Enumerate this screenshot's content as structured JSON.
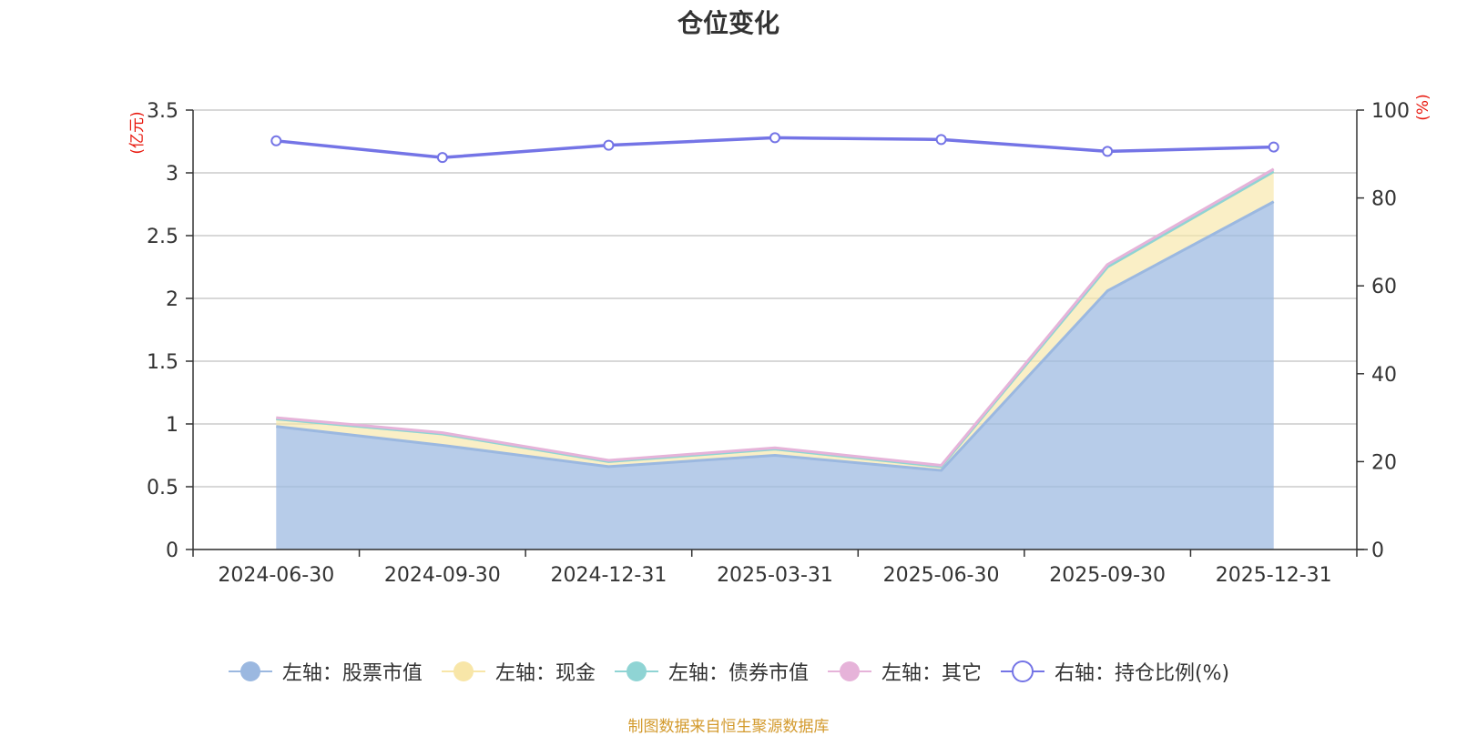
{
  "chart_data": {
    "type": "area",
    "title": "仓位变化",
    "categories": [
      "2024-06-30",
      "2024-09-30",
      "2024-12-31",
      "2025-03-31",
      "2025-06-30",
      "2025-09-30",
      "2025-12-31"
    ],
    "left_axis": {
      "unit": "(亿元)",
      "ylim": [
        0,
        3.5
      ],
      "ticks": [
        "0",
        "0.5",
        "1",
        "1.5",
        "2",
        "2.5",
        "3",
        "3.5"
      ]
    },
    "right_axis": {
      "unit": "(%)",
      "ylim": [
        0,
        100
      ],
      "ticks": [
        "0",
        "20",
        "40",
        "60",
        "80",
        "100"
      ]
    },
    "series": [
      {
        "name": "左轴：股票市值",
        "axis": "left",
        "color": "#9bb8e0",
        "values": [
          0.98,
          0.83,
          0.66,
          0.75,
          0.63,
          2.06,
          2.77
        ]
      },
      {
        "name": "左轴：现金",
        "axis": "left",
        "color": "#f8e6a8",
        "values": [
          0.06,
          0.09,
          0.04,
          0.05,
          0.03,
          0.19,
          0.24
        ]
      },
      {
        "name": "左轴：债券市值",
        "axis": "left",
        "color": "#8fd4d4",
        "values": [
          0,
          0,
          0,
          0,
          0,
          0,
          0
        ]
      },
      {
        "name": "左轴：其它",
        "axis": "left",
        "color": "#e6b3d9",
        "values": [
          0.01,
          0.01,
          0.01,
          0.01,
          0.01,
          0.02,
          0.02
        ]
      },
      {
        "name": "右轴：持仓比例(%)",
        "axis": "right",
        "color": "#7474e6",
        "values": [
          93.0,
          89.2,
          92.0,
          93.7,
          93.3,
          90.6,
          91.6
        ]
      }
    ]
  },
  "source_note": "制图数据来自恒生聚源数据库"
}
